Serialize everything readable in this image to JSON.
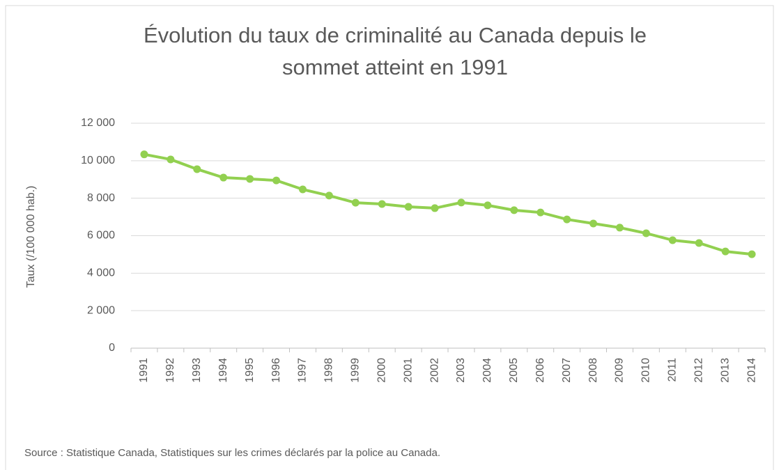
{
  "chart_data": {
    "type": "line",
    "title": "Évolution du taux de criminalité au Canada depuis le sommet atteint en 1991",
    "y_label": "Taux (/100 000 hab.)",
    "source": "Source : Statistique Canada,  Statistiques sur les crimes déclarés par la police au Canada.",
    "categories": [
      "1991",
      "1992",
      "1993",
      "1994",
      "1995",
      "1996",
      "1997",
      "1998",
      "1999",
      "2000",
      "2001",
      "2002",
      "2003",
      "2004",
      "2005",
      "2006",
      "2007",
      "2008",
      "2009",
      "2010",
      "2011",
      "2012",
      "2013",
      "2014"
    ],
    "series": [
      {
        "name": "Taux",
        "color": "#92d050",
        "values": [
          10340,
          10070,
          9550,
          9100,
          9030,
          8950,
          8470,
          8140,
          7760,
          7690,
          7540,
          7470,
          7770,
          7620,
          7360,
          7240,
          6870,
          6650,
          6430,
          6130,
          5760,
          5610,
          5160,
          5010
        ]
      }
    ],
    "ylim": [
      0,
      12000
    ],
    "yticks": [
      0,
      {
        "value": 2000,
        "label": "2 000"
      },
      {
        "value": 4000,
        "label": "4 000"
      },
      {
        "value": 6000,
        "label": "6 000"
      },
      {
        "value": 8000,
        "label": "8 000"
      },
      {
        "value": 10000,
        "label": "10 000"
      },
      {
        "value": 12000,
        "label": "12 000"
      }
    ],
    "grid": true
  }
}
